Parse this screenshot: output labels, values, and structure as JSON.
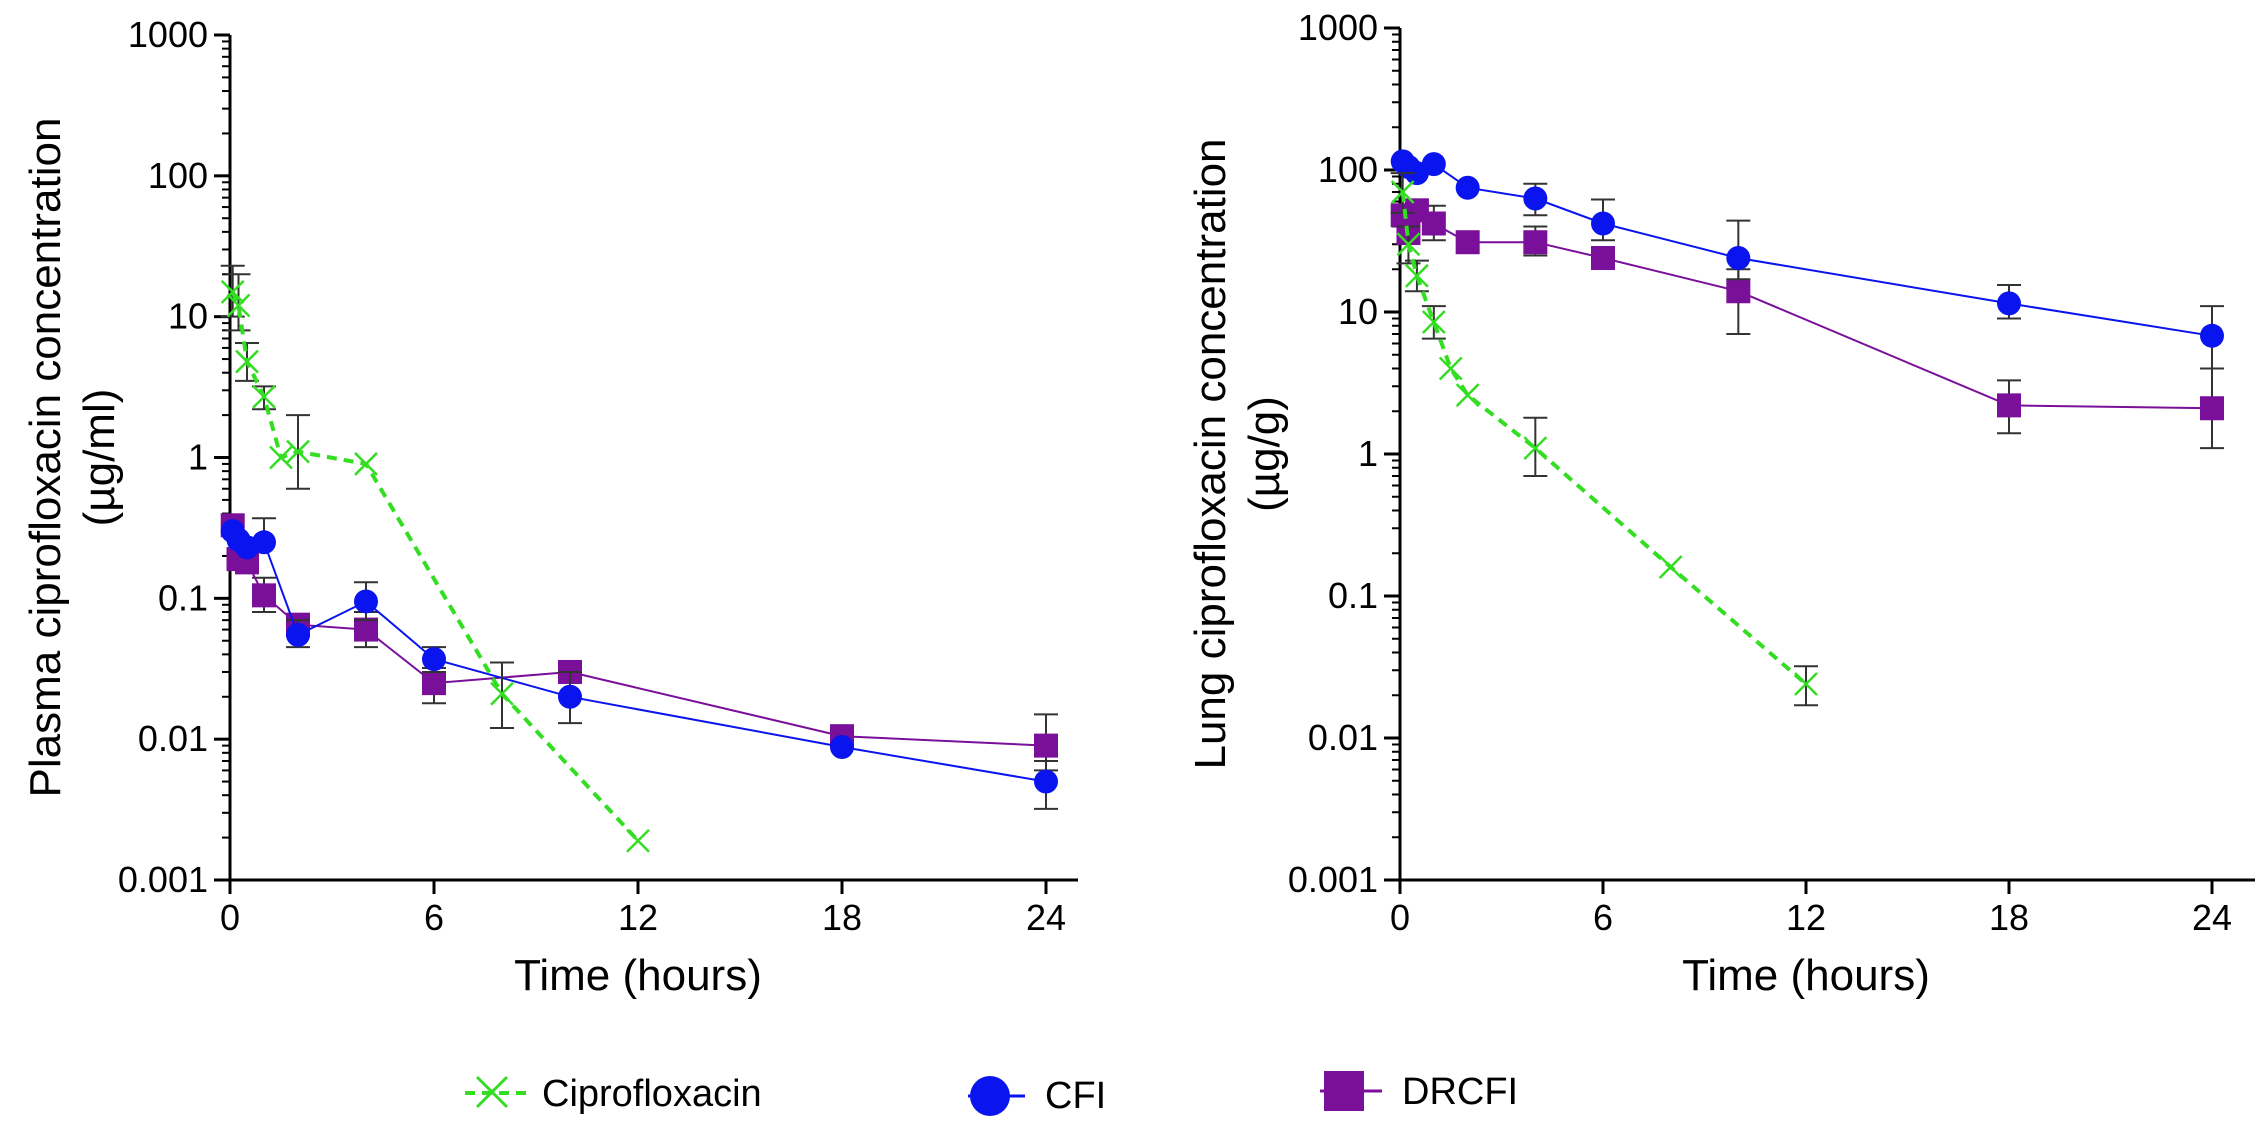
{
  "chart_data": [
    {
      "type": "line",
      "scale": "log",
      "xlabel": "Time (hours)",
      "ylabel_line1": "Plasma ciprofloxacin concentration",
      "ylabel_line2": "(µg/ml)",
      "xlim": [
        0,
        25
      ],
      "xticks": [
        0,
        6,
        12,
        18,
        24
      ],
      "ylim": [
        0.001,
        1000
      ],
      "yticks": [
        0.001,
        0.01,
        0.1,
        1,
        10,
        100,
        1000
      ],
      "ytick_labels": [
        "0.001",
        "0.01",
        "0.1",
        "1",
        "10",
        "100",
        "1000"
      ],
      "series": [
        {
          "name": "Ciprofloxacin",
          "x": [
            0.08,
            0.25,
            0.5,
            1,
            1.5,
            2,
            4,
            8,
            12
          ],
          "y": [
            15,
            12,
            4.8,
            2.7,
            1.0,
            1.1,
            0.9,
            0.021,
            0.0019
          ],
          "err_low": [
            10,
            8,
            3.5,
            2.2,
            null,
            0.6,
            null,
            0.012,
            null
          ],
          "err_high": [
            23,
            20,
            6.5,
            3.2,
            null,
            2.0,
            null,
            0.035,
            null
          ]
        },
        {
          "name": "CFI",
          "x": [
            0.08,
            0.25,
            0.5,
            1,
            2,
            4,
            6,
            10,
            18,
            24
          ],
          "y": [
            0.3,
            0.26,
            0.23,
            0.25,
            0.055,
            0.095,
            0.037,
            0.02,
            0.0088,
            0.005
          ],
          "err_low": [
            null,
            null,
            null,
            null,
            0.045,
            0.07,
            0.03,
            0.013,
            null,
            0.0032
          ],
          "err_high": [
            null,
            null,
            null,
            0.37,
            0.07,
            0.13,
            0.045,
            0.03,
            null,
            0.007
          ]
        },
        {
          "name": "DRCFI",
          "x": [
            0.08,
            0.25,
            0.5,
            1,
            2,
            4,
            6,
            10,
            18,
            24
          ],
          "y": [
            0.33,
            0.19,
            0.18,
            0.105,
            0.065,
            0.06,
            0.025,
            0.03,
            0.0105,
            0.009
          ],
          "err_low": [
            null,
            null,
            null,
            0.08,
            null,
            0.045,
            0.018,
            null,
            null,
            0.006
          ],
          "err_high": [
            null,
            null,
            null,
            0.14,
            null,
            0.08,
            0.032,
            null,
            null,
            0.015
          ]
        }
      ]
    },
    {
      "type": "line",
      "scale": "log",
      "xlabel": "Time (hours)",
      "ylabel_line1": "Lung ciprofloxacin concentration",
      "ylabel_line2": "(µg/g)",
      "xlim": [
        0,
        25
      ],
      "xticks": [
        0,
        6,
        12,
        18,
        24
      ],
      "ylim": [
        0.001,
        1000
      ],
      "yticks": [
        0.001,
        0.01,
        0.1,
        1,
        10,
        100,
        1000
      ],
      "ytick_labels": [
        "0.001",
        "0.01",
        "0.1",
        "1",
        "10",
        "100",
        "1000"
      ],
      "series": [
        {
          "name": "Ciprofloxacin",
          "x": [
            0.08,
            0.25,
            0.5,
            1,
            1.5,
            2,
            4,
            8,
            12
          ],
          "y": [
            70,
            30,
            18,
            8.5,
            4.0,
            2.6,
            1.1,
            0.16,
            0.024
          ],
          "err_low": [
            50,
            22,
            14,
            6.5,
            null,
            null,
            0.7,
            null,
            0.017
          ],
          "err_high": [
            95,
            40,
            23,
            11,
            null,
            null,
            1.8,
            null,
            0.032
          ]
        },
        {
          "name": "CFI",
          "x": [
            0.08,
            0.25,
            0.5,
            1,
            2,
            4,
            6,
            10,
            18,
            24
          ],
          "y": [
            115,
            105,
            95,
            110,
            75,
            63,
            42,
            24,
            11.5,
            6.8
          ],
          "err_low": [
            null,
            null,
            null,
            null,
            null,
            48,
            32,
            17,
            9,
            4.0
          ],
          "err_high": [
            null,
            null,
            null,
            null,
            null,
            80,
            62,
            44,
            15.5,
            11
          ]
        },
        {
          "name": "DRCFI",
          "x": [
            0.08,
            0.25,
            0.5,
            1,
            2,
            4,
            6,
            10,
            18,
            24
          ],
          "y": [
            48,
            36,
            52,
            42,
            31,
            31,
            24,
            14,
            2.2,
            2.1
          ],
          "err_low": [
            null,
            null,
            null,
            32,
            null,
            25,
            null,
            7,
            1.4,
            1.1
          ],
          "err_high": [
            null,
            null,
            null,
            56,
            null,
            40,
            null,
            20,
            3.3,
            4.0
          ]
        }
      ]
    }
  ],
  "legend": [
    {
      "name": "Ciprofloxacin",
      "marker": "x",
      "line": "dashed"
    },
    {
      "name": "CFI",
      "marker": "circle",
      "line": "solid"
    },
    {
      "name": "DRCFI",
      "marker": "square",
      "line": "solid"
    }
  ],
  "colors": {
    "Ciprofloxacin": "#33dd22",
    "CFI": "#0a14ee",
    "DRCFI": "#7a0f9a",
    "axis": "#000000",
    "errorbar": "#333333"
  }
}
